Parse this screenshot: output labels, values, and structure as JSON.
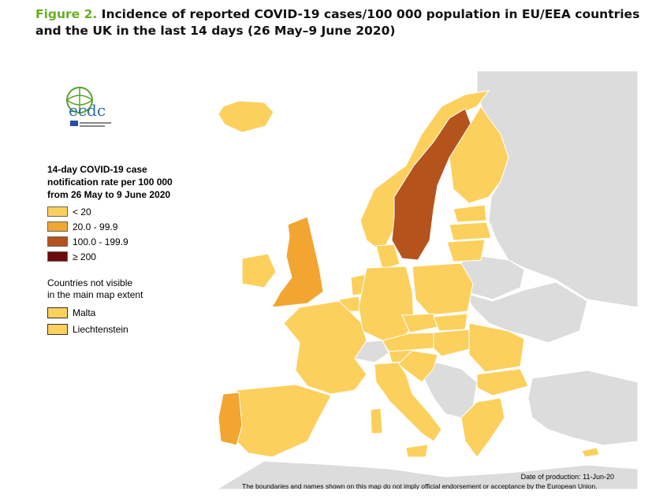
{
  "caption": {
    "figure_label": "Figure 2.",
    "title": "Incidence of reported COVID-19 cases/100 000 population in EU/EEA countries and the UK in the last 14 days (26 May–9 June 2020)"
  },
  "logo": {
    "text": "ecdc"
  },
  "legend": {
    "title": "14-day COVID-19 case\nnotification rate per 100 000\nfrom 26 May to 9 June 2020",
    "classes": [
      {
        "label": "< 20",
        "color": "#fbd05d"
      },
      {
        "label": "20.0 - 99.9",
        "color": "#f2a530"
      },
      {
        "label": "100.0 - 199.9",
        "color": "#b5531c"
      },
      {
        "label": "≥ 200",
        "color": "#6e0a0a"
      }
    ]
  },
  "not_visible": {
    "title": "Countries not visible\nin the main map extent",
    "items": [
      {
        "label": "Malta",
        "color": "#fbd05d"
      },
      {
        "label": "Liechtenstein",
        "color": "#fbd05d"
      }
    ]
  },
  "map_data": {
    "colors": {
      "sea": "#ffffff",
      "non_eu": "#dcdcdc",
      "border": "#ffffff"
    },
    "regions": [
      {
        "name": "Sweden",
        "class": "100.0 - 199.9"
      },
      {
        "name": "United Kingdom",
        "class": "20.0 - 99.9"
      },
      {
        "name": "Portugal",
        "class": "20.0 - 99.9"
      },
      {
        "name": "Luxembourg",
        "class": "20.0 - 99.9"
      },
      {
        "name": "Iceland",
        "class": "< 20"
      },
      {
        "name": "Ireland",
        "class": "< 20"
      },
      {
        "name": "Norway",
        "class": "< 20"
      },
      {
        "name": "Finland",
        "class": "< 20"
      },
      {
        "name": "Estonia",
        "class": "< 20"
      },
      {
        "name": "Latvia",
        "class": "< 20"
      },
      {
        "name": "Lithuania",
        "class": "< 20"
      },
      {
        "name": "Denmark",
        "class": "< 20"
      },
      {
        "name": "Netherlands",
        "class": "< 20"
      },
      {
        "name": "Belgium",
        "class": "< 20"
      },
      {
        "name": "Germany",
        "class": "< 20"
      },
      {
        "name": "Poland",
        "class": "< 20"
      },
      {
        "name": "Czechia",
        "class": "< 20"
      },
      {
        "name": "Slovakia",
        "class": "< 20"
      },
      {
        "name": "Austria",
        "class": "< 20"
      },
      {
        "name": "Hungary",
        "class": "< 20"
      },
      {
        "name": "Slovenia",
        "class": "< 20"
      },
      {
        "name": "Croatia",
        "class": "< 20"
      },
      {
        "name": "Romania",
        "class": "< 20"
      },
      {
        "name": "Bulgaria",
        "class": "< 20"
      },
      {
        "name": "Greece",
        "class": "< 20"
      },
      {
        "name": "Italy",
        "class": "< 20"
      },
      {
        "name": "France",
        "class": "< 20"
      },
      {
        "name": "Spain",
        "class": "< 20"
      },
      {
        "name": "Cyprus",
        "class": "< 20"
      },
      {
        "name": "Switzerland",
        "class": "non-EU/EEA"
      },
      {
        "name": "Serbia",
        "class": "non-EU/EEA"
      },
      {
        "name": "Russia",
        "class": "non-EU/EEA"
      },
      {
        "name": "Belarus",
        "class": "non-EU/EEA"
      },
      {
        "name": "Ukraine",
        "class": "non-EU/EEA"
      },
      {
        "name": "Turkey",
        "class": "non-EU/EEA"
      }
    ]
  },
  "footer": {
    "production": "Date of production: 11-Jun-20",
    "disclaimer": "The boundaries and names shown on this map do not imply official endorsement or acceptance by the European Union."
  }
}
